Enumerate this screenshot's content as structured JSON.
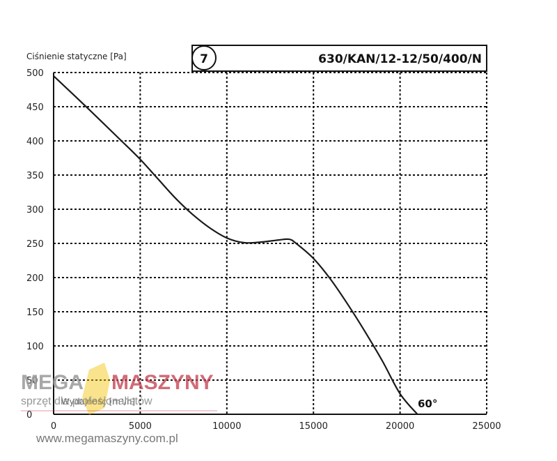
{
  "chart_data": {
    "type": "line",
    "title": "630/KAN/12-12/50/400/N",
    "badge": "7",
    "ylabel": "Ciśnienie statyczne [Pa]",
    "xlabel": "Wydajność [m³/h]",
    "annotation": "60°",
    "xlim": [
      0,
      25000
    ],
    "ylim": [
      0,
      500
    ],
    "x_ticks": [
      "0",
      "5000",
      "10000",
      "15000",
      "20000",
      "25000"
    ],
    "y_ticks": [
      "0",
      "50",
      "100",
      "150",
      "200",
      "250",
      "300",
      "350",
      "400",
      "450",
      "500"
    ],
    "grid": true,
    "series": [
      {
        "x": [
          0,
          2000,
          4000,
          5000,
          6000,
          7000,
          8000,
          9000,
          10000,
          11000,
          12000,
          13000,
          13600,
          14000,
          15000,
          16000,
          17000,
          18000,
          19000,
          20000,
          21000
        ],
        "y": [
          495,
          447,
          398,
          373,
          345,
          317,
          293,
          273,
          258,
          251,
          252,
          255,
          256,
          250,
          228,
          197,
          160,
          120,
          77,
          30,
          0
        ]
      }
    ]
  },
  "watermark": {
    "brand_left": "MEGA",
    "brand_right": "MASZYNY",
    "tagline": "sprzęt dla profesjonalistów",
    "url": "www.megamaszyny.com.pl"
  },
  "colors": {
    "curve": "#1a1a1a",
    "grid": "#111111",
    "logo_accent": "#f2c200"
  }
}
